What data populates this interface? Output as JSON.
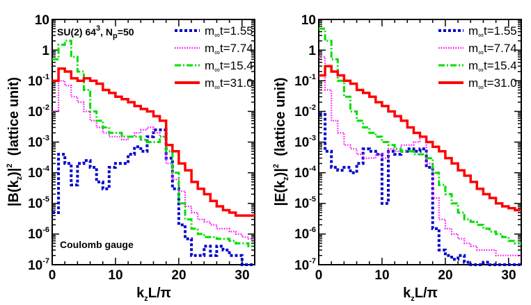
{
  "chart_data": [
    {
      "id": "left",
      "type": "line",
      "step": true,
      "xlabel": {
        "main": "k",
        "sub": "z",
        "tail": "L/π"
      },
      "ylabel": {
        "a": "|B(k",
        "sub": "z",
        "b": ")|",
        "sup": "2",
        "c": "  (lattice unit)"
      },
      "xlim": [
        0,
        32
      ],
      "ylim_log10": [
        -7,
        1
      ],
      "x_ticks": [
        0,
        10,
        20,
        30
      ],
      "y_ticks": [
        "10",
        "1",
        "10⁻¹",
        "10⁻²",
        "10⁻³",
        "10⁻⁴",
        "10⁻⁵",
        "10⁻⁶",
        "10⁻⁷"
      ],
      "y_tick_parts": [
        {
          "base": "10",
          "exp": ""
        },
        {
          "base": "1",
          "exp": ""
        },
        {
          "base": "10",
          "exp": "-1"
        },
        {
          "base": "10",
          "exp": "-2"
        },
        {
          "base": "10",
          "exp": "-3"
        },
        {
          "base": "10",
          "exp": "-4"
        },
        {
          "base": "10",
          "exp": "-5"
        },
        {
          "base": "10",
          "exp": "-6"
        },
        {
          "base": "10",
          "exp": "-7"
        }
      ],
      "annotations": [
        {
          "text": "SU(2) 64³, Nₚ=50",
          "parts": {
            "a": "SU(2) 64",
            "sup": "3",
            "b": ", N",
            "sub": "p",
            "c": "=50"
          }
        },
        {
          "text": "Coulomb gauge"
        }
      ],
      "series": [
        {
          "name": "m∞t=1.55",
          "label_parts": {
            "a": "m",
            "sub": "∞",
            "b": "t=1.55"
          },
          "color": "#0000cc",
          "style": "dotted",
          "values": [
            5e-06,
            0.0004,
            0.0002,
            4e-05,
            0.0002,
            0.00025,
            0.00015,
            5e-05,
            3e-05,
            0.00015,
            0.0002,
            0.0002,
            0.0004,
            0.0007,
            0.0005,
            0.0015,
            0.0025,
            0.0025,
            0.0003,
            3e-05,
            2e-06,
            7e-07,
            2e-07,
            2e-07,
            4e-07,
            2e-07,
            4e-07,
            3e-07,
            2e-07,
            2e-07,
            1e-07,
            1e-07
          ]
        },
        {
          "name": "m∞t=7.74",
          "label_parts": {
            "a": "m",
            "sub": "∞",
            "b": "t=7.74"
          },
          "color": "#ff00ff",
          "style": "fine-dotted",
          "values": [
            0.01,
            0.1,
            0.07,
            0.03,
            0.02,
            0.01,
            0.005,
            0.003,
            0.002,
            0.0015,
            0.0015,
            0.0012,
            0.0015,
            0.002,
            0.0025,
            0.003,
            0.002,
            0.0015,
            0.0002,
            6e-05,
            2.5e-05,
            8e-06,
            5e-06,
            3e-06,
            2.5e-06,
            2e-06,
            1.5e-06,
            1.5e-06,
            1.2e-06,
            1e-06,
            8e-07,
            7e-07
          ]
        },
        {
          "name": "m∞t=15.4",
          "label_parts": {
            "a": "m",
            "sub": "∞",
            "b": "t=15.4"
          },
          "color": "#00dd00",
          "style": "dash-dot",
          "values": [
            0.5,
            1.5,
            2,
            0.6,
            0.2,
            0.05,
            0.01,
            0.005,
            0.003,
            0.002,
            0.002,
            0.0015,
            0.0015,
            0.0015,
            0.0012,
            0.001,
            0.001,
            0.0015,
            0.0005,
            0.0001,
            1e-05,
            3e-06,
            1.5e-06,
            1e-06,
            8e-07,
            8e-07,
            7e-07,
            7e-07,
            6e-07,
            5e-07,
            5e-07,
            4e-07
          ]
        },
        {
          "name": "m∞t=31.0",
          "label_parts": {
            "a": "m",
            "sub": "∞",
            "b": "t=31.0"
          },
          "color": "#ff0000",
          "style": "solid",
          "values": [
            0.1,
            0.25,
            0.2,
            0.12,
            0.1,
            0.12,
            0.1,
            0.08,
            0.05,
            0.04,
            0.03,
            0.025,
            0.02,
            0.015,
            0.012,
            0.01,
            0.007,
            0.005,
            0.0008,
            0.0005,
            0.0002,
            0.00012,
            5e-05,
            3e-05,
            2e-05,
            1.2e-05,
            8e-06,
            6e-06,
            5e-06,
            4e-06,
            4e-06,
            4e-06
          ]
        }
      ]
    },
    {
      "id": "right",
      "type": "line",
      "step": true,
      "xlabel": {
        "main": "k",
        "sub": "z",
        "tail": "L/π"
      },
      "ylabel": {
        "a": "|E(k",
        "sub": "z",
        "b": ")|",
        "sup": "2",
        "c": "  (lattice unit)"
      },
      "xlim": [
        0,
        32
      ],
      "ylim_log10": [
        -7,
        1
      ],
      "x_ticks": [
        0,
        10,
        20,
        30
      ],
      "y_ticks": [
        "10",
        "1",
        "10⁻¹",
        "10⁻²",
        "10⁻³",
        "10⁻⁴",
        "10⁻⁵",
        "10⁻⁶",
        "10⁻⁷"
      ],
      "y_tick_parts": [
        {
          "base": "10",
          "exp": ""
        },
        {
          "base": "1",
          "exp": ""
        },
        {
          "base": "10",
          "exp": "-1"
        },
        {
          "base": "10",
          "exp": "-2"
        },
        {
          "base": "10",
          "exp": "-3"
        },
        {
          "base": "10",
          "exp": "-4"
        },
        {
          "base": "10",
          "exp": "-5"
        },
        {
          "base": "10",
          "exp": "-6"
        },
        {
          "base": "10",
          "exp": "-7"
        }
      ],
      "series": [
        {
          "name": "m∞t=1.55",
          "label_parts": {
            "a": "m",
            "sub": "∞",
            "b": "t=1.55"
          },
          "color": "#0000cc",
          "style": "dotted",
          "values": [
            0.008,
            0.0005,
            0.00015,
            0.00012,
            0.00015,
            0.0001,
            0.0002,
            0.0006,
            0.0005,
            0.0004,
            1e-05,
            0.0005,
            0.0004,
            0.0005,
            0.0006,
            0.0005,
            0.0006,
            0.00015,
            1.5e-06,
            3e-07,
            2e-07,
            1.5e-07,
            2e-07,
            1.2e-07,
            1e-07,
            1e-07,
            1.2e-07,
            1e-07,
            1e-07,
            1e-07,
            1e-07,
            1e-07
          ]
        },
        {
          "name": "m∞t=7.74",
          "label_parts": {
            "a": "m",
            "sub": "∞",
            "b": "t=7.74"
          },
          "color": "#ff00ff",
          "style": "fine-dotted",
          "values": [
            0.6,
            0.05,
            0.005,
            0.002,
            0.0008,
            0.0006,
            0.0004,
            0.0003,
            0.0003,
            0.0004,
            0.0003,
            0.0006,
            0.0005,
            0.0008,
            0.0008,
            0.001,
            0.0015,
            0.0002,
            1.5e-05,
            3e-06,
            1.5e-06,
            1e-06,
            7e-07,
            5e-07,
            4e-07,
            3e-07,
            3e-07,
            3e-07,
            2e-07,
            2e-07,
            2e-07,
            2e-07
          ]
        },
        {
          "name": "m∞t=15.4",
          "label_parts": {
            "a": "m",
            "sub": "∞",
            "b": "t=15.4"
          },
          "color": "#00dd00",
          "style": "dash-dot",
          "values": [
            5,
            2,
            0.5,
            0.1,
            0.03,
            0.01,
            0.005,
            0.003,
            0.002,
            0.0015,
            0.001,
            0.0008,
            0.0006,
            0.0005,
            0.0005,
            0.0004,
            0.0004,
            0.0003,
            0.0001,
            4e-05,
            2e-05,
            1e-05,
            5e-06,
            3e-06,
            2.5e-06,
            2e-06,
            1.5e-06,
            1.2e-06,
            1e-06,
            8e-07,
            6e-07,
            5e-07
          ]
        },
        {
          "name": "m∞t=31.0",
          "label_parts": {
            "a": "m",
            "sub": "∞",
            "b": "t=31.0"
          },
          "color": "#ff0000",
          "style": "solid",
          "values": [
            0.15,
            0.3,
            0.2,
            0.15,
            0.1,
            0.08,
            0.05,
            0.04,
            0.03,
            0.02,
            0.015,
            0.01,
            0.007,
            0.005,
            0.003,
            0.002,
            0.0015,
            0.001,
            0.0007,
            0.0005,
            0.0003,
            0.0002,
            0.00012,
            8e-05,
            5e-05,
            3e-05,
            2e-05,
            1.5e-05,
            1e-05,
            8e-06,
            7e-06,
            6e-06
          ]
        }
      ]
    }
  ]
}
